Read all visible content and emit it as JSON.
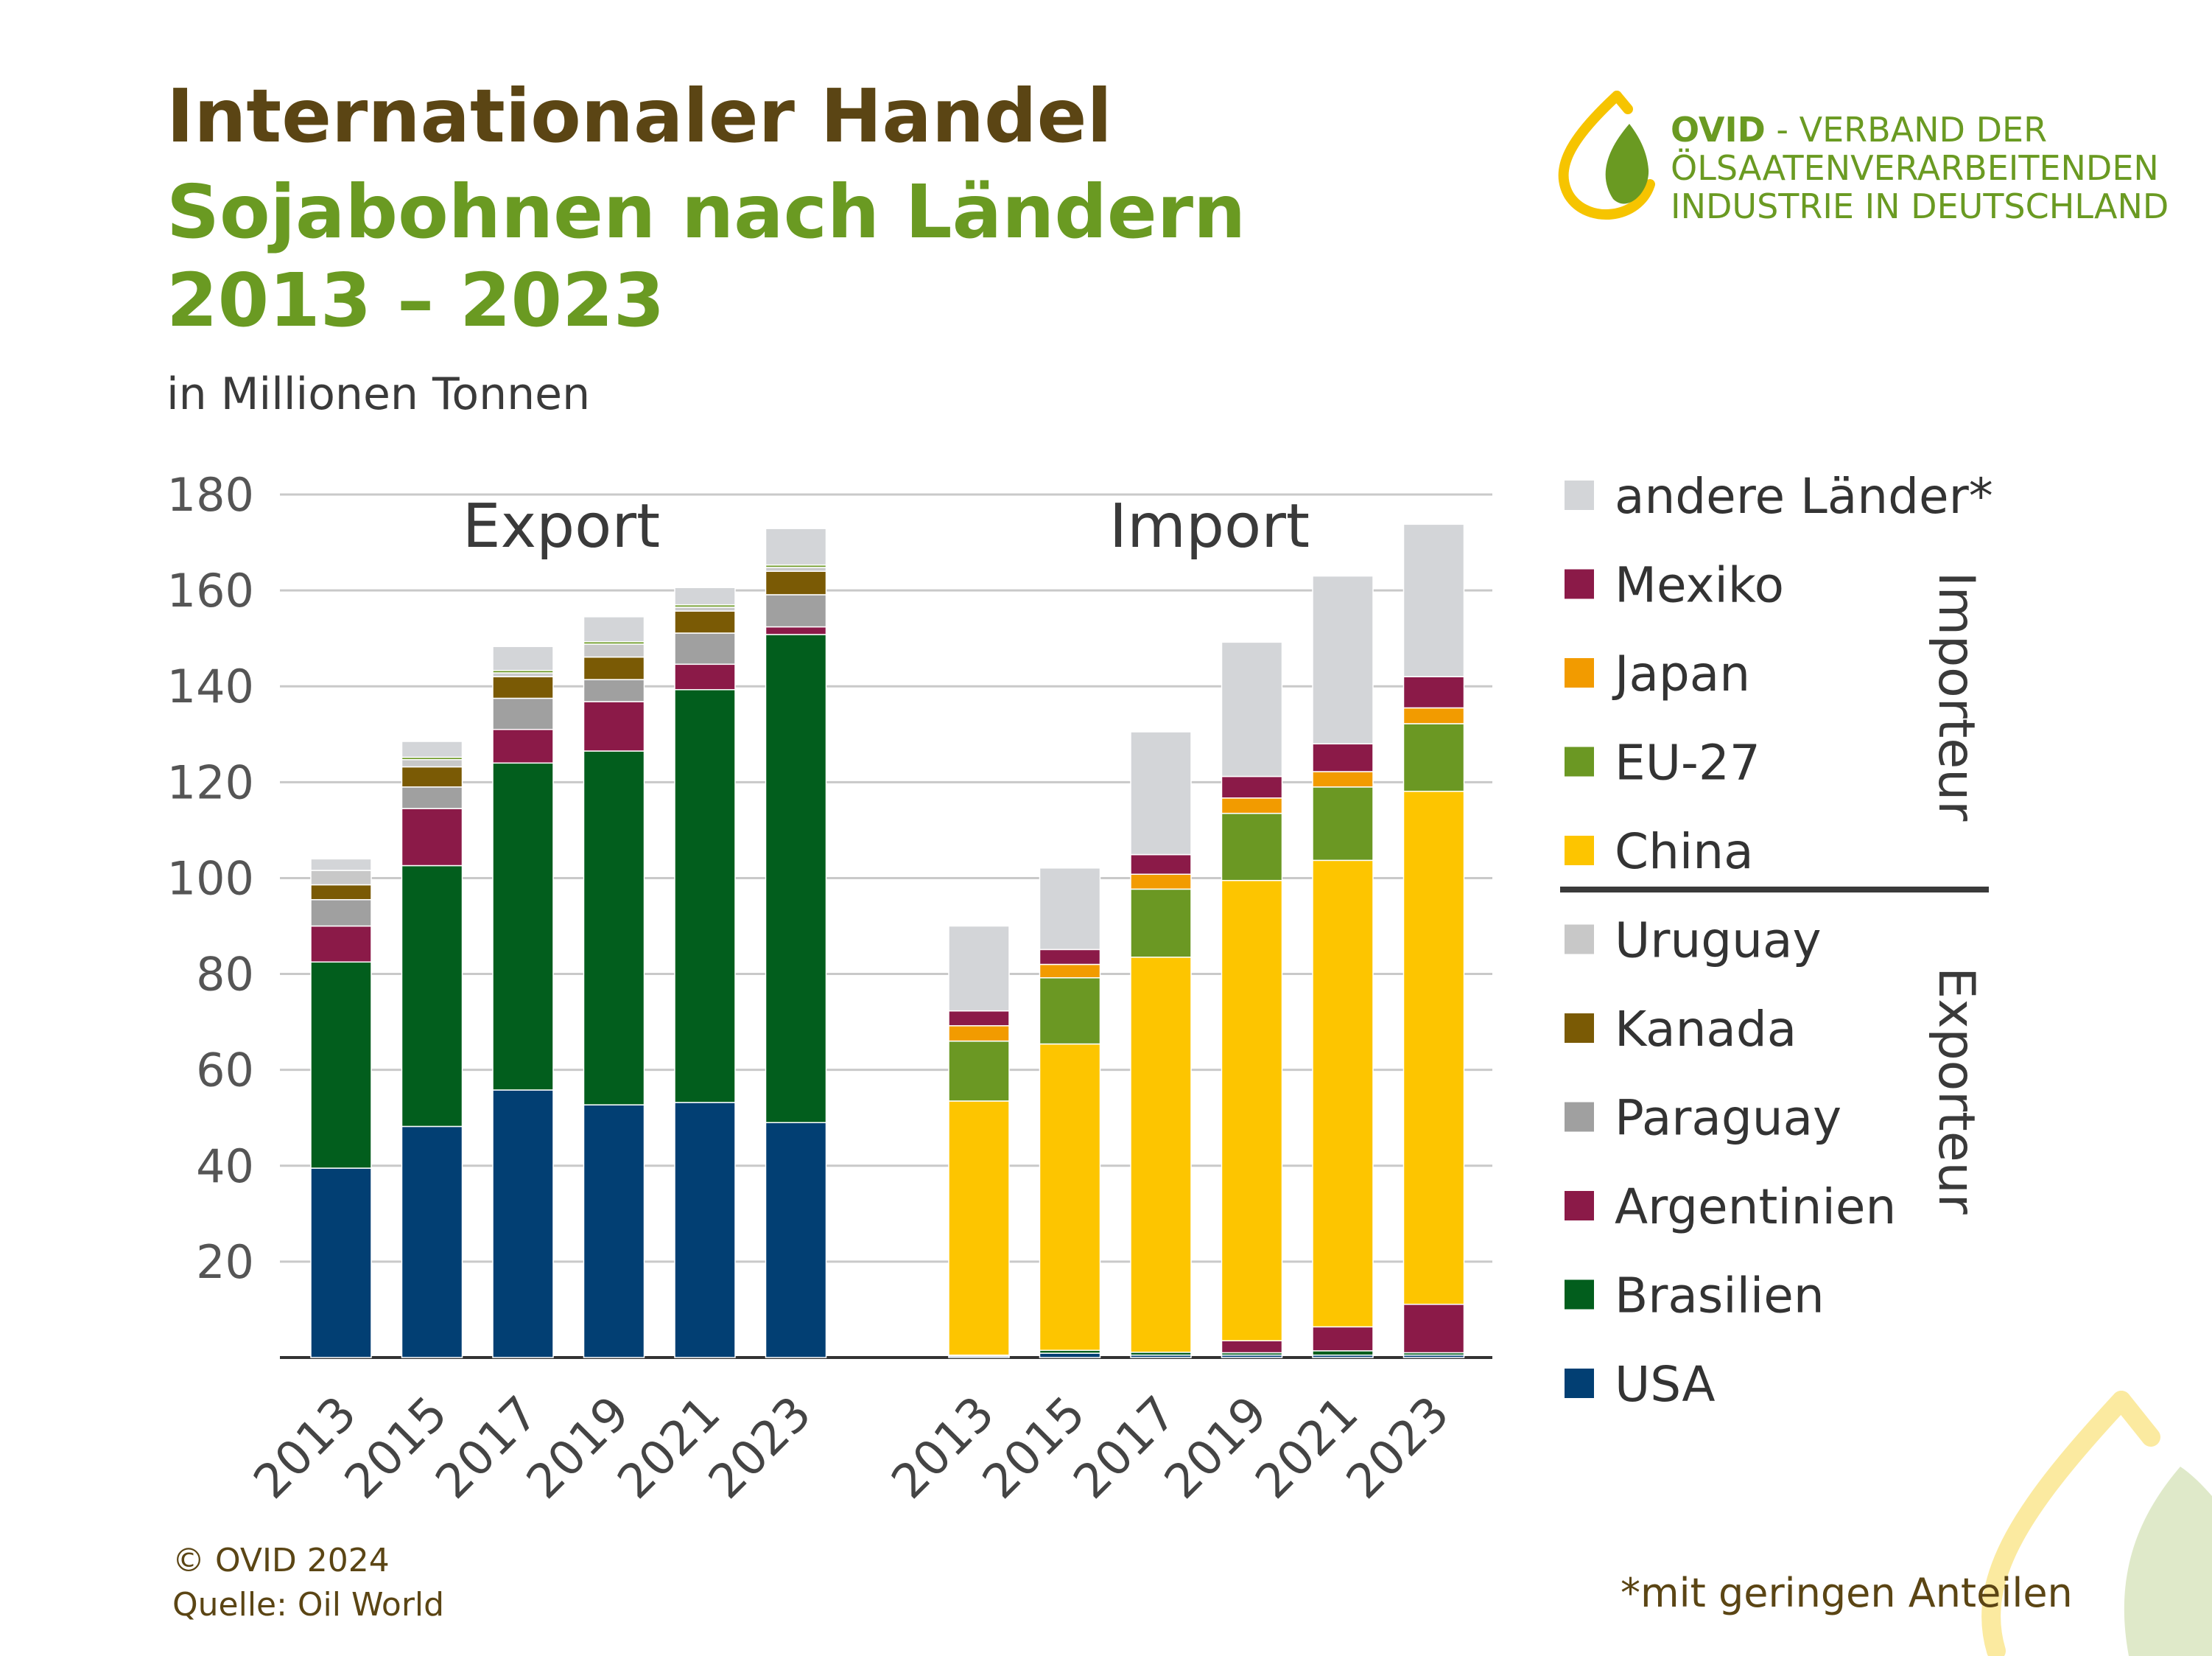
{
  "header": {
    "title_line1": "Internationaler Handel",
    "title_line2": "Sojabohnen nach Ländern 2013 – 2023",
    "subtitle": "in Millionen Tonnen"
  },
  "logo": {
    "brand": "OVID",
    "line1_rest": " - VERBAND DER",
    "line2": "ÖLSAATENVERARBEITENDEN",
    "line3": "INDUSTRIE IN DEUTSCHLAND"
  },
  "footer": {
    "copyright": "© OVID 2024",
    "source": "Quelle: Oil World",
    "footnote": "*mit geringen Anteilen"
  },
  "chart_data": {
    "type": "bar",
    "stacked": true,
    "ylim": [
      0,
      180
    ],
    "yticks": [
      20,
      40,
      60,
      80,
      100,
      120,
      140,
      160,
      180
    ],
    "grid": true,
    "legend_group_labels": {
      "importer": "Importeur",
      "exporter": "Exporteur"
    },
    "groups": [
      {
        "label": "Export",
        "categories": [
          "2013",
          "2015",
          "2017",
          "2019",
          "2021",
          "2023"
        ],
        "series": [
          {
            "name": "USA",
            "color": "#023f73",
            "values": [
              39.5,
              48.2,
              55.8,
              52.7,
              53.2,
              49.0
            ]
          },
          {
            "name": "Brasilien",
            "color": "#025e1d",
            "values": [
              43.0,
              54.4,
              68.2,
              73.8,
              86.1,
              101.8
            ]
          },
          {
            "name": "Argentinien",
            "color": "#8b1a48",
            "values": [
              7.5,
              11.9,
              7.0,
              10.3,
              5.3,
              1.6
            ]
          },
          {
            "name": "Paraguay",
            "color": "#a0a0a0",
            "values": [
              5.5,
              4.5,
              6.5,
              4.6,
              6.5,
              6.7
            ]
          },
          {
            "name": "Kanada",
            "color": "#7a5a05",
            "values": [
              3.1,
              4.2,
              4.5,
              4.7,
              4.6,
              4.9
            ]
          },
          {
            "name": "Uruguay",
            "color": "#c8c8c8",
            "values": [
              3.0,
              1.5,
              0.8,
              2.7,
              0.8,
              0.8
            ]
          },
          {
            "name": "EU-27",
            "color": "#6b9823",
            "values": [
              0.0,
              0.5,
              0.5,
              0.5,
              0.5,
              0.5
            ]
          },
          {
            "name": "andere Länder*",
            "color": "#d3d5d8",
            "values": [
              2.4,
              3.3,
              5.0,
              5.2,
              3.6,
              7.6
            ]
          }
        ]
      },
      {
        "label": "Import",
        "categories": [
          "2013",
          "2015",
          "2017",
          "2019",
          "2021",
          "2023"
        ],
        "series": [
          {
            "name": "USA",
            "color": "#023f73",
            "values": [
              0.3,
              0.9,
              0.5,
              0.5,
              0.5,
              0.5
            ]
          },
          {
            "name": "Brasilien",
            "color": "#025e1d",
            "values": [
              0.2,
              0.6,
              0.6,
              0.5,
              0.9,
              0.5
            ]
          },
          {
            "name": "Argentinien",
            "color": "#8b1a48",
            "values": [
              0.0,
              0.0,
              0.0,
              2.5,
              5.0,
              10.1
            ]
          },
          {
            "name": "China",
            "color": "#fdc500",
            "values": [
              53.0,
              63.9,
              82.4,
              96.0,
              97.3,
              107.0
            ]
          },
          {
            "name": "EU-27",
            "color": "#6b9823",
            "values": [
              12.5,
              13.8,
              14.2,
              14.0,
              15.3,
              14.1
            ]
          },
          {
            "name": "Japan",
            "color": "#f29b00",
            "values": [
              3.2,
              2.8,
              3.1,
              3.2,
              3.2,
              3.3
            ]
          },
          {
            "name": "Mexiko",
            "color": "#8b1a48",
            "values": [
              3.1,
              3.1,
              4.1,
              4.5,
              5.8,
              6.5
            ]
          },
          {
            "name": "andere Länder*",
            "color": "#d3d5d8",
            "values": [
              17.7,
              17.0,
              25.6,
              28.0,
              35.0,
              31.8
            ]
          }
        ]
      }
    ],
    "legend": [
      {
        "name": "andere Länder*",
        "color": "#d3d5d8"
      },
      {
        "name": "Mexiko",
        "color": "#8b1a48"
      },
      {
        "name": "Japan",
        "color": "#f29b00"
      },
      {
        "name": "EU-27",
        "color": "#6b9823"
      },
      {
        "name": "China",
        "color": "#fdc500"
      },
      {
        "name": "Uruguay",
        "color": "#c8c8c8"
      },
      {
        "name": "Kanada",
        "color": "#7a5a05"
      },
      {
        "name": "Paraguay",
        "color": "#a0a0a0"
      },
      {
        "name": "Argentinien",
        "color": "#8b1a48"
      },
      {
        "name": "Brasilien",
        "color": "#025e1d"
      },
      {
        "name": "USA",
        "color": "#023f73"
      }
    ]
  }
}
